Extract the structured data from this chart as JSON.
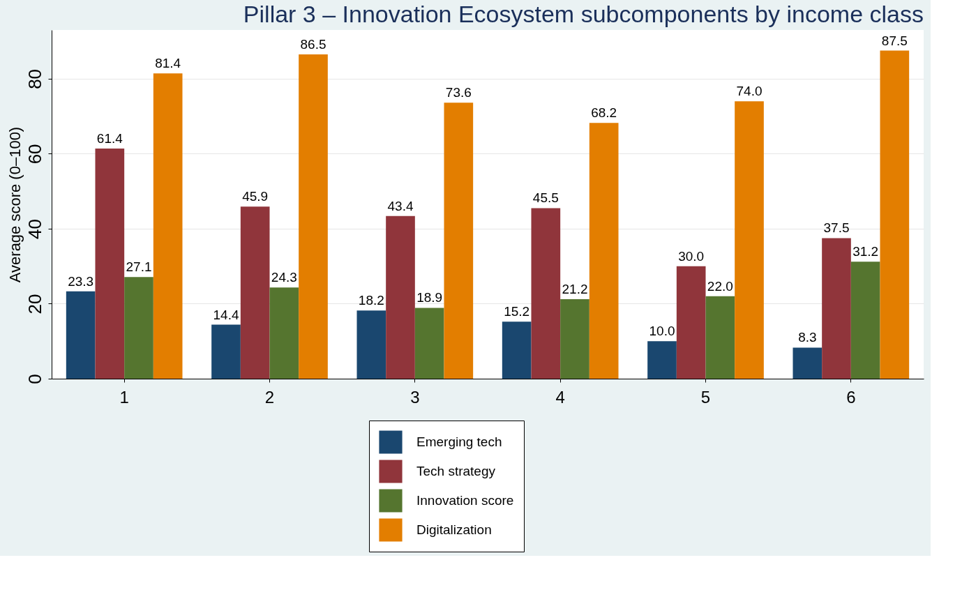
{
  "chart_data": {
    "type": "bar",
    "title": "Pillar 3 – Innovation Ecosystem subcomponents by income class",
    "ylabel": "Average score (0–100)",
    "categories": [
      "1",
      "2",
      "3",
      "4",
      "5",
      "6"
    ],
    "series": [
      {
        "name": "Emerging tech",
        "color": "#1a476f",
        "values": [
          23.3,
          14.4,
          18.2,
          15.2,
          10.0,
          8.3
        ],
        "value_labels": [
          "23.3",
          "14.4",
          "18.2",
          "15.2",
          "10.0",
          "8.3"
        ]
      },
      {
        "name": "Tech strategy",
        "color": "#90353b",
        "values": [
          61.4,
          45.9,
          43.4,
          45.5,
          30.0,
          37.5
        ],
        "value_labels": [
          "61.4",
          "45.9",
          "43.4",
          "45.5",
          "30.0",
          "37.5"
        ]
      },
      {
        "name": "Innovation score",
        "color": "#55752f",
        "values": [
          27.1,
          24.3,
          18.9,
          21.2,
          22.0,
          31.2
        ],
        "value_labels": [
          "27.1",
          "24.3",
          "18.9",
          "21.2",
          "22.0",
          "31.2"
        ]
      },
      {
        "name": "Digitalization",
        "color": "#e37e00",
        "values": [
          81.4,
          86.5,
          73.6,
          68.2,
          74.0,
          87.5
        ],
        "value_labels": [
          "81.4",
          "86.5",
          "73.6",
          "68.2",
          "74.0",
          "87.5"
        ]
      }
    ],
    "ylim": [
      0,
      93
    ],
    "yticks": [
      0,
      20,
      40,
      60,
      80
    ],
    "grid": "y",
    "legend": "bottom"
  }
}
